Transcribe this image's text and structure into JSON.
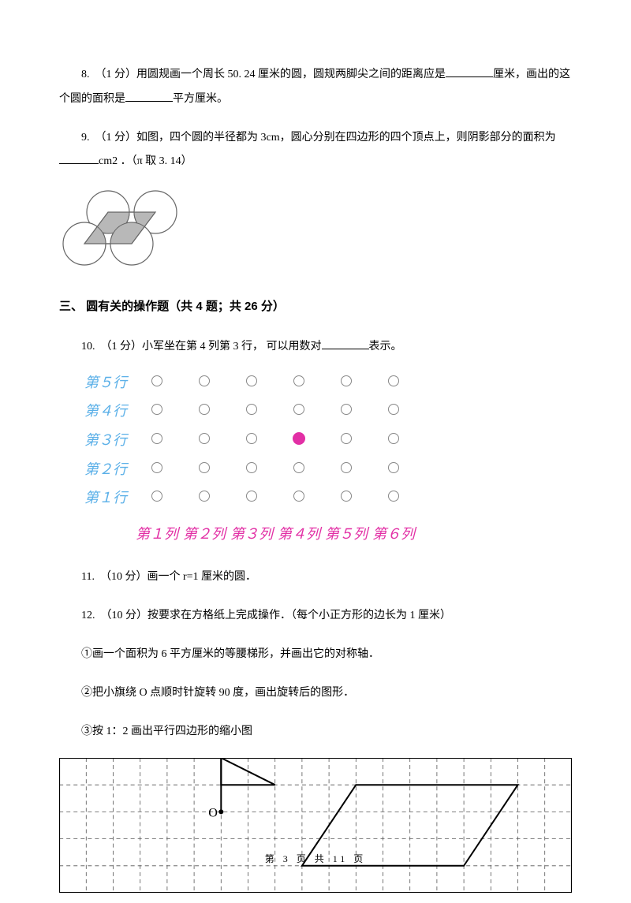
{
  "q8": {
    "text_a": "8.　（1 分）用圆规画一个周长 50. 24 厘米的圆，圆规两脚尖之间的距离应是",
    "text_b": "厘米，画出的这个圆的面积是",
    "text_c": "平方厘米。"
  },
  "q9": {
    "text_a": "9.　（1 分）如图，四个圆的半径都为 3cm，圆心分别在四边形的四个顶点上，则阴影部分的面积为",
    "text_b": "cm2 ．（π 取 3. 14）",
    "figure": {
      "circle_r": 27,
      "stroke": "#666666",
      "fill_shade": "#b8b8b8",
      "bg": "#ffffff"
    }
  },
  "section3": {
    "title": "三、 圆有关的操作题（共 4 题；共 26 分）"
  },
  "q10": {
    "text_a": "10.　（1 分）小军坐在第 4 列第 3 行， 可以用数对",
    "text_b": "表示。",
    "rows": [
      "第５行",
      "第４行",
      "第３行",
      "第２行",
      "第１行"
    ],
    "cols": [
      "第１列",
      "第２列",
      "第３列",
      "第４列",
      "第５列",
      "第６列"
    ],
    "highlight": {
      "row_label": "第３行",
      "col_index": 3
    },
    "row_color": "#5bb0e8",
    "col_color": "#e22fa5",
    "circle_border": "#888888",
    "dot_fill": "#e22fa5"
  },
  "q11": {
    "text": "11.　（10 分）画一个 r=1 厘米的圆．"
  },
  "q12": {
    "text": "12.　（10 分）按要求在方格纸上完成操作．（每个小正方形的边长为 1 厘米）",
    "s1": "①画一个面积为 6 平方厘米的等腰梯形，并画出它的对称轴．",
    "s2": "②把小旗绕 O 点顺时针旋转 90 度，画出旋转后的图形．",
    "s3": "③按 1：2 画出平行四边形的缩小图",
    "grid": {
      "cols": 19,
      "rows": 5,
      "cell": 34,
      "border": "#000000",
      "dash": "#666666",
      "o_label": "O"
    }
  },
  "footer": {
    "text": "第 3 页 共 11 页"
  }
}
